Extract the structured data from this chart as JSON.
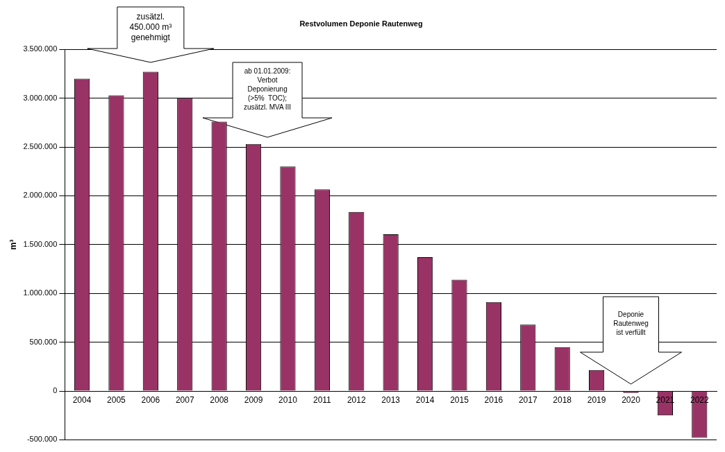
{
  "chart_data": {
    "type": "bar",
    "title": "Restvolumen Deponie Rautenweg",
    "ylabel": "m³",
    "categories": [
      "2004",
      "2005",
      "2006",
      "2007",
      "2008",
      "2009",
      "2010",
      "2011",
      "2012",
      "2013",
      "2014",
      "2015",
      "2016",
      "2017",
      "2018",
      "2019",
      "2020",
      "2021",
      "2022"
    ],
    "values": [
      3200000,
      3030000,
      3270000,
      3000000,
      2760000,
      2530000,
      2300000,
      2065000,
      1835000,
      1605000,
      1370000,
      1140000,
      910000,
      680000,
      450000,
      215000,
      -20000,
      -250000,
      -480000
    ],
    "color": "#993366",
    "ylim": [
      -500000,
      3500000
    ],
    "yticks": [
      {
        "value": -500000,
        "label": "-500.000"
      },
      {
        "value": 0,
        "label": "0"
      },
      {
        "value": 500000,
        "label": "500.000"
      },
      {
        "value": 1000000,
        "label": "1.000.000"
      },
      {
        "value": 1500000,
        "label": "1.500.000"
      },
      {
        "value": 2000000,
        "label": "2.000.000"
      },
      {
        "value": 2500000,
        "label": "2.500.000"
      },
      {
        "value": 3000000,
        "label": "3.000.000"
      },
      {
        "value": 3500000,
        "label": "3.500.000"
      }
    ],
    "grid": "y",
    "legend": false,
    "annotations": [
      "zusätzl.\n450.000 m³\ngenehmigt",
      "ab 01.01.2009:\nVerbot\nDeponierung\n(>5%  TOC);\nzusätzl. MVA III",
      "Deponie\nRautenweg\nist verfüllt"
    ]
  }
}
